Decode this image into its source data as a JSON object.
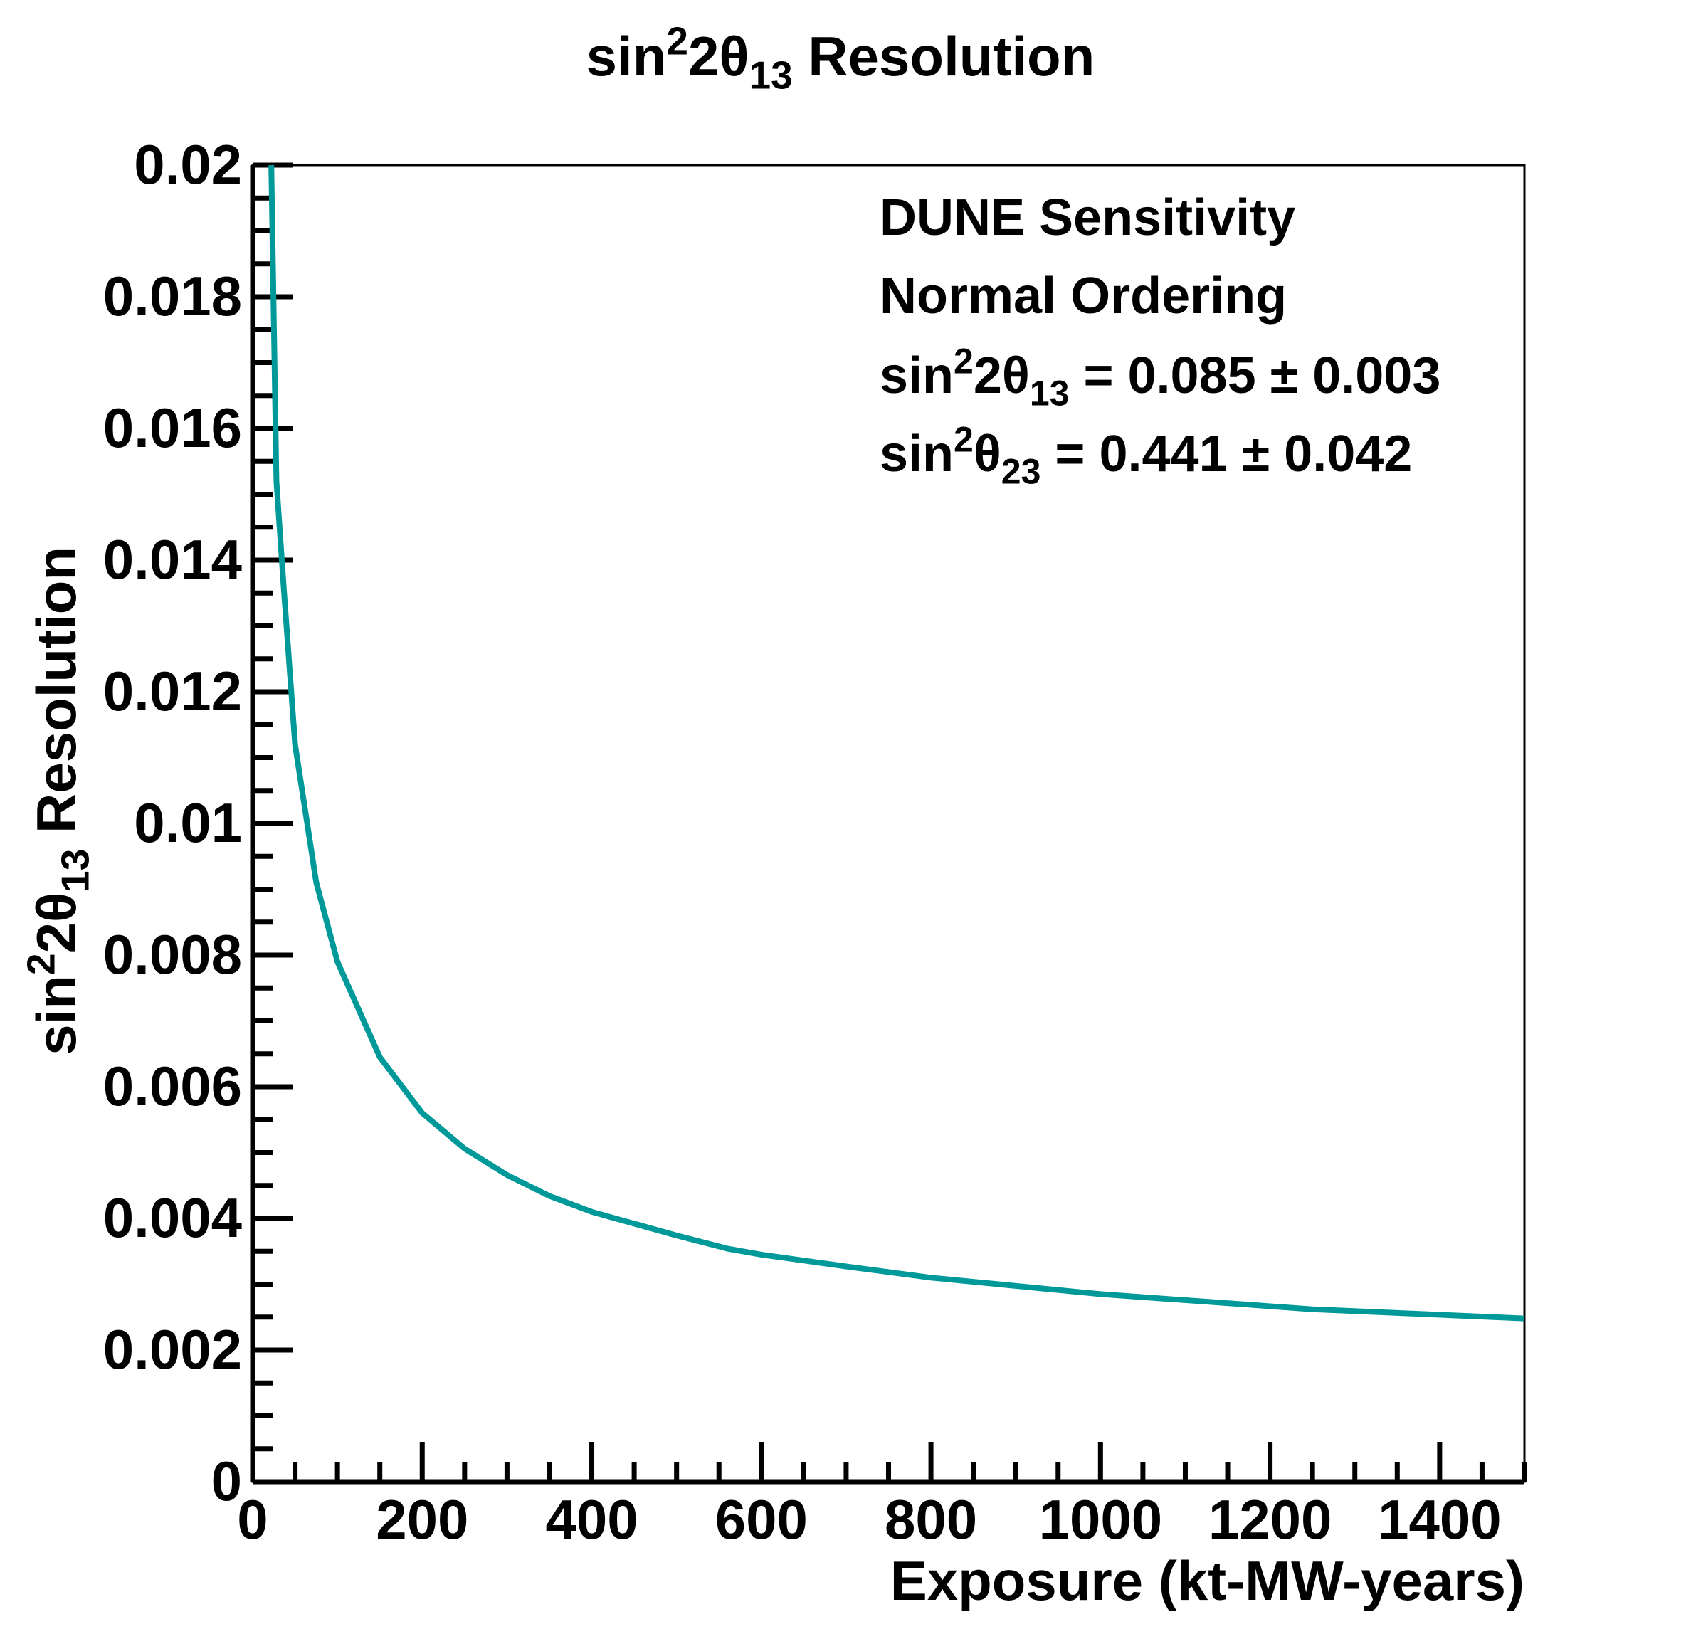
{
  "chart_data": {
    "type": "line",
    "title": {
      "prefix": "sin",
      "sup": "2",
      "mid": "2θ",
      "sub": "13",
      "suffix": " Resolution"
    },
    "xlabel": "Exposure (kt-MW-years)",
    "ylabel": {
      "prefix": "sin",
      "sup": "2",
      "mid": "2θ",
      "sub": "13",
      "suffix": " Resolution"
    },
    "xlim": [
      0,
      1500
    ],
    "ylim": [
      0,
      0.02
    ],
    "x_ticks": [
      "0",
      "200",
      "400",
      "600",
      "800",
      "1000",
      "1200",
      "1400"
    ],
    "y_ticks": [
      "0",
      "0.002",
      "0.004",
      "0.006",
      "0.008",
      "0.01",
      "0.012",
      "0.014",
      "0.016",
      "0.018",
      "0.02"
    ],
    "grid": false,
    "line_color": "#009999",
    "annotations": {
      "line1": "DUNE Sensitivity",
      "line2": "Normal Ordering",
      "line3": {
        "prefix": "sin",
        "sup": "2",
        "mid": "2θ",
        "sub": "13",
        "suffix": " = 0.085 ± 0.003"
      },
      "line4": {
        "prefix": "sin",
        "sup": "2",
        "mid": "θ",
        "sub": "23",
        "suffix": " = 0.441 ± 0.042"
      }
    },
    "series": [
      {
        "x": [
          22,
          28,
          36,
          50,
          75,
          100,
          150,
          200,
          250,
          300,
          350,
          400,
          450,
          500,
          560,
          600,
          700,
          800,
          1000,
          1250,
          1500
        ],
        "values": [
          0.02,
          0.0152,
          0.0137,
          0.0112,
          0.0091,
          0.0079,
          0.00645,
          0.0056,
          0.00506,
          0.00466,
          0.00434,
          0.0041,
          0.00392,
          0.00374,
          0.00354,
          0.00345,
          0.00327,
          0.0031,
          0.00285,
          0.00262,
          0.00248
        ]
      }
    ]
  }
}
